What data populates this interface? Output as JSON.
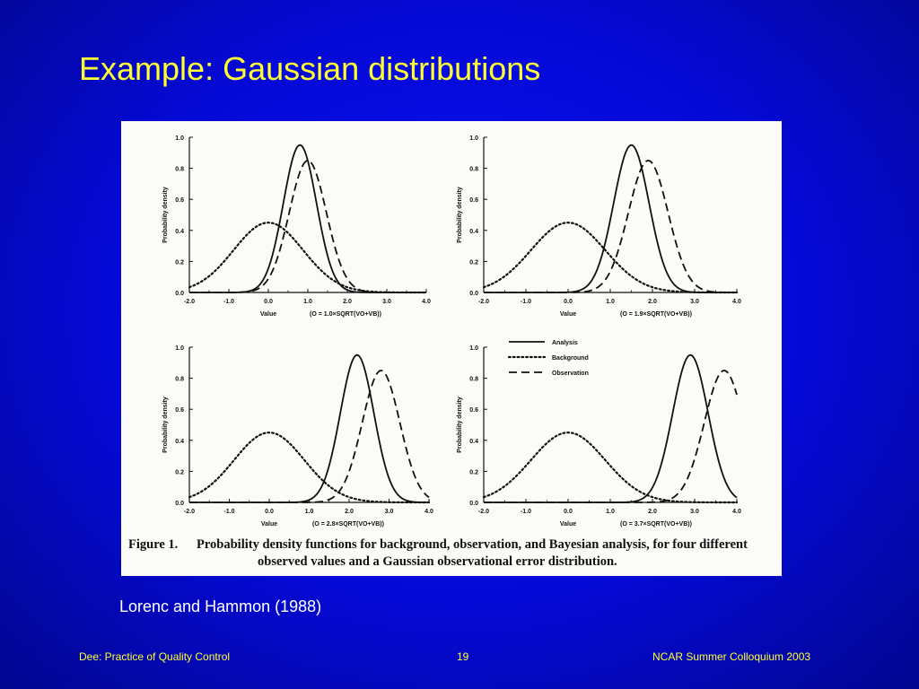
{
  "slide": {
    "title": "Example: Gaussian distributions",
    "source": "Lorenc and Hammon (1988)"
  },
  "footer": {
    "left": "Dee: Practice of Quality Control",
    "page": "19",
    "right": "NCAR Summer Colloquium 2003"
  },
  "figure": {
    "caption_label": "Figure 1.",
    "caption_line1": "Probability density functions for background, observation, and Bayesian analysis, for four different",
    "caption_line2": "observed values and a Gaussian observational error distribution."
  },
  "colors": {
    "background": "#0509d6",
    "title": "#ffff33",
    "footer": "#ffff33",
    "source_text": "#ffffff",
    "figure_bg": "#fbfbf8",
    "ink": "#111111"
  },
  "chart_data": [
    {
      "type": "line",
      "xlabel": "Value",
      "ylabel": "Probability density",
      "xlim": [
        -2.0,
        4.0
      ],
      "ylim": [
        0.0,
        1.0
      ],
      "x_ticks": [
        "-2.0",
        "-1.0",
        "0.0",
        "1.0",
        "2.0",
        "3.0",
        "4.0"
      ],
      "y_ticks": [
        "0.0",
        "0.2",
        "0.4",
        "0.6",
        "0.8",
        "1.0"
      ],
      "annotation": "(O = 1.0×SQRT(VO+VB))",
      "series": [
        {
          "name": "Analysis",
          "style": "solid",
          "mean": 0.8,
          "peak": 0.95,
          "sd": 0.42
        },
        {
          "name": "Background",
          "style": "dotted",
          "mean": 0.0,
          "peak": 0.45,
          "sd": 0.88
        },
        {
          "name": "Observation",
          "style": "dashed",
          "mean": 1.0,
          "peak": 0.85,
          "sd": 0.47
        }
      ]
    },
    {
      "type": "line",
      "xlabel": "Value",
      "ylabel": "Probability density",
      "xlim": [
        -2.0,
        4.0
      ],
      "ylim": [
        0.0,
        1.0
      ],
      "x_ticks": [
        "-2.0",
        "-1.0",
        "0.0",
        "1.0",
        "2.0",
        "3.0",
        "4.0"
      ],
      "y_ticks": [
        "0.0",
        "0.2",
        "0.4",
        "0.6",
        "0.8",
        "1.0"
      ],
      "annotation": "(O = 1.9×SQRT(VO+VB))",
      "series": [
        {
          "name": "Analysis",
          "style": "solid",
          "mean": 1.5,
          "peak": 0.95,
          "sd": 0.42
        },
        {
          "name": "Background",
          "style": "dotted",
          "mean": 0.0,
          "peak": 0.45,
          "sd": 0.88
        },
        {
          "name": "Observation",
          "style": "dashed",
          "mean": 1.9,
          "peak": 0.85,
          "sd": 0.47
        }
      ]
    },
    {
      "type": "line",
      "xlabel": "Value",
      "ylabel": "Probability density",
      "xlim": [
        -2.0,
        4.0
      ],
      "ylim": [
        0.0,
        1.0
      ],
      "x_ticks": [
        "-2.0",
        "-1.0",
        "0.0",
        "1.0",
        "2.0",
        "3.0",
        "4.0"
      ],
      "y_ticks": [
        "0.0",
        "0.2",
        "0.4",
        "0.6",
        "0.8",
        "1.0"
      ],
      "annotation": "(O = 2.8×SQRT(VO+VB))",
      "series": [
        {
          "name": "Analysis",
          "style": "solid",
          "mean": 2.2,
          "peak": 0.95,
          "sd": 0.42
        },
        {
          "name": "Background",
          "style": "dotted",
          "mean": 0.0,
          "peak": 0.45,
          "sd": 0.88
        },
        {
          "name": "Observation",
          "style": "dashed",
          "mean": 2.8,
          "peak": 0.85,
          "sd": 0.47
        }
      ]
    },
    {
      "type": "line",
      "xlabel": "Value",
      "ylabel": "Probability density",
      "xlim": [
        -2.0,
        4.0
      ],
      "ylim": [
        0.0,
        1.0
      ],
      "x_ticks": [
        "-2.0",
        "-1.0",
        "0.0",
        "1.0",
        "2.0",
        "3.0",
        "4.0"
      ],
      "y_ticks": [
        "0.0",
        "0.2",
        "0.4",
        "0.6",
        "0.8",
        "1.0"
      ],
      "annotation": "(O = 3.7×SQRT(VO+VB))",
      "legend": [
        "Analysis",
        "Background",
        "Observation"
      ],
      "legend_position": "top-left",
      "series": [
        {
          "name": "Analysis",
          "style": "solid",
          "mean": 2.9,
          "peak": 0.95,
          "sd": 0.42
        },
        {
          "name": "Background",
          "style": "dotted",
          "mean": 0.0,
          "peak": 0.45,
          "sd": 0.88
        },
        {
          "name": "Observation",
          "style": "dashed",
          "mean": 3.7,
          "peak": 0.85,
          "sd": 0.47
        }
      ]
    }
  ]
}
